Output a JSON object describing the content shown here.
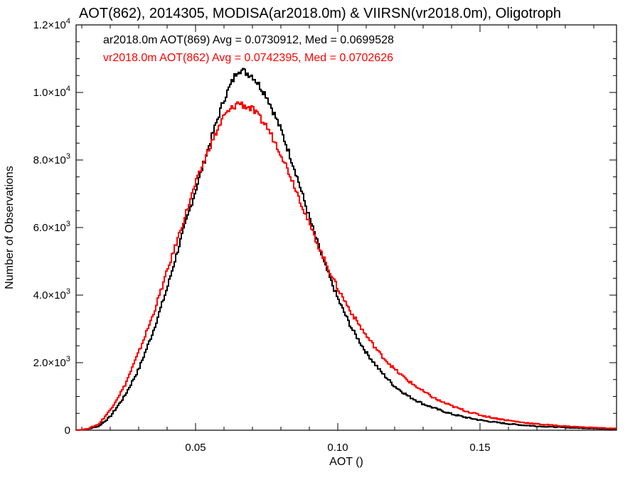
{
  "chart_data": {
    "type": "line",
    "title": "AOT(862), 2014305, MODISA(ar2018.0m) & VIIRSN(vr2018.0m), Oligotroph",
    "xlabel": "AOT ()",
    "ylabel": "Number of Observations",
    "xlim": [
      0.008,
      0.198
    ],
    "ylim": [
      0,
      12000
    ],
    "x_ticks": [
      {
        "value": 0.05,
        "label": "0.05"
      },
      {
        "value": 0.1,
        "label": "0.10"
      },
      {
        "value": 0.15,
        "label": "0.15"
      }
    ],
    "y_ticks": [
      {
        "value": 0,
        "mantissa": "0",
        "exponent": ""
      },
      {
        "value": 2000,
        "mantissa": "2.0×10",
        "exponent": "3"
      },
      {
        "value": 4000,
        "mantissa": "4.0×10",
        "exponent": "3"
      },
      {
        "value": 6000,
        "mantissa": "6.0×10",
        "exponent": "3"
      },
      {
        "value": 8000,
        "mantissa": "8.0×10",
        "exponent": "3"
      },
      {
        "value": 10000,
        "mantissa": "1.0×10",
        "exponent": "4"
      },
      {
        "value": 12000,
        "mantissa": "1.2×10",
        "exponent": "4"
      }
    ],
    "grid": false,
    "legend_position": "top-left",
    "series": [
      {
        "legend": "ar2018.0m AOT(869) Avg = 0.0730912, Med = 0.0699528",
        "color": "#000000",
        "points": [
          [
            0.008,
            0
          ],
          [
            0.012,
            30
          ],
          [
            0.016,
            120
          ],
          [
            0.02,
            400
          ],
          [
            0.025,
            1000
          ],
          [
            0.03,
            1800
          ],
          [
            0.035,
            2900
          ],
          [
            0.04,
            4200
          ],
          [
            0.045,
            5700
          ],
          [
            0.05,
            7100
          ],
          [
            0.055,
            8500
          ],
          [
            0.06,
            9800
          ],
          [
            0.065,
            10700
          ],
          [
            0.07,
            10500
          ],
          [
            0.075,
            9900
          ],
          [
            0.08,
            8900
          ],
          [
            0.085,
            7700
          ],
          [
            0.09,
            6300
          ],
          [
            0.095,
            5000
          ],
          [
            0.1,
            3900
          ],
          [
            0.105,
            3000
          ],
          [
            0.11,
            2300
          ],
          [
            0.115,
            1750
          ],
          [
            0.12,
            1300
          ],
          [
            0.125,
            1000
          ],
          [
            0.13,
            780
          ],
          [
            0.135,
            620
          ],
          [
            0.14,
            480
          ],
          [
            0.145,
            380
          ],
          [
            0.15,
            300
          ],
          [
            0.155,
            240
          ],
          [
            0.16,
            190
          ],
          [
            0.165,
            150
          ],
          [
            0.17,
            120
          ],
          [
            0.175,
            100
          ],
          [
            0.18,
            80
          ],
          [
            0.185,
            65
          ],
          [
            0.19,
            50
          ],
          [
            0.195,
            40
          ],
          [
            0.198,
            35
          ]
        ]
      },
      {
        "legend": "vr2018.0m AOT(862) Avg = 0.0742395, Med = 0.0702626",
        "color": "#ff0000",
        "points": [
          [
            0.008,
            0
          ],
          [
            0.012,
            40
          ],
          [
            0.016,
            180
          ],
          [
            0.02,
            600
          ],
          [
            0.025,
            1300
          ],
          [
            0.03,
            2300
          ],
          [
            0.035,
            3400
          ],
          [
            0.04,
            4700
          ],
          [
            0.045,
            6000
          ],
          [
            0.05,
            7300
          ],
          [
            0.055,
            8400
          ],
          [
            0.06,
            9300
          ],
          [
            0.065,
            9700
          ],
          [
            0.07,
            9500
          ],
          [
            0.075,
            9000
          ],
          [
            0.08,
            8200
          ],
          [
            0.085,
            7200
          ],
          [
            0.09,
            6100
          ],
          [
            0.095,
            5100
          ],
          [
            0.1,
            4200
          ],
          [
            0.105,
            3450
          ],
          [
            0.11,
            2800
          ],
          [
            0.115,
            2250
          ],
          [
            0.12,
            1800
          ],
          [
            0.125,
            1450
          ],
          [
            0.13,
            1150
          ],
          [
            0.135,
            900
          ],
          [
            0.14,
            720
          ],
          [
            0.145,
            570
          ],
          [
            0.15,
            450
          ],
          [
            0.155,
            360
          ],
          [
            0.16,
            290
          ],
          [
            0.165,
            230
          ],
          [
            0.17,
            185
          ],
          [
            0.175,
            150
          ],
          [
            0.18,
            120
          ],
          [
            0.185,
            95
          ],
          [
            0.19,
            75
          ],
          [
            0.195,
            60
          ],
          [
            0.198,
            50
          ]
        ]
      }
    ]
  }
}
